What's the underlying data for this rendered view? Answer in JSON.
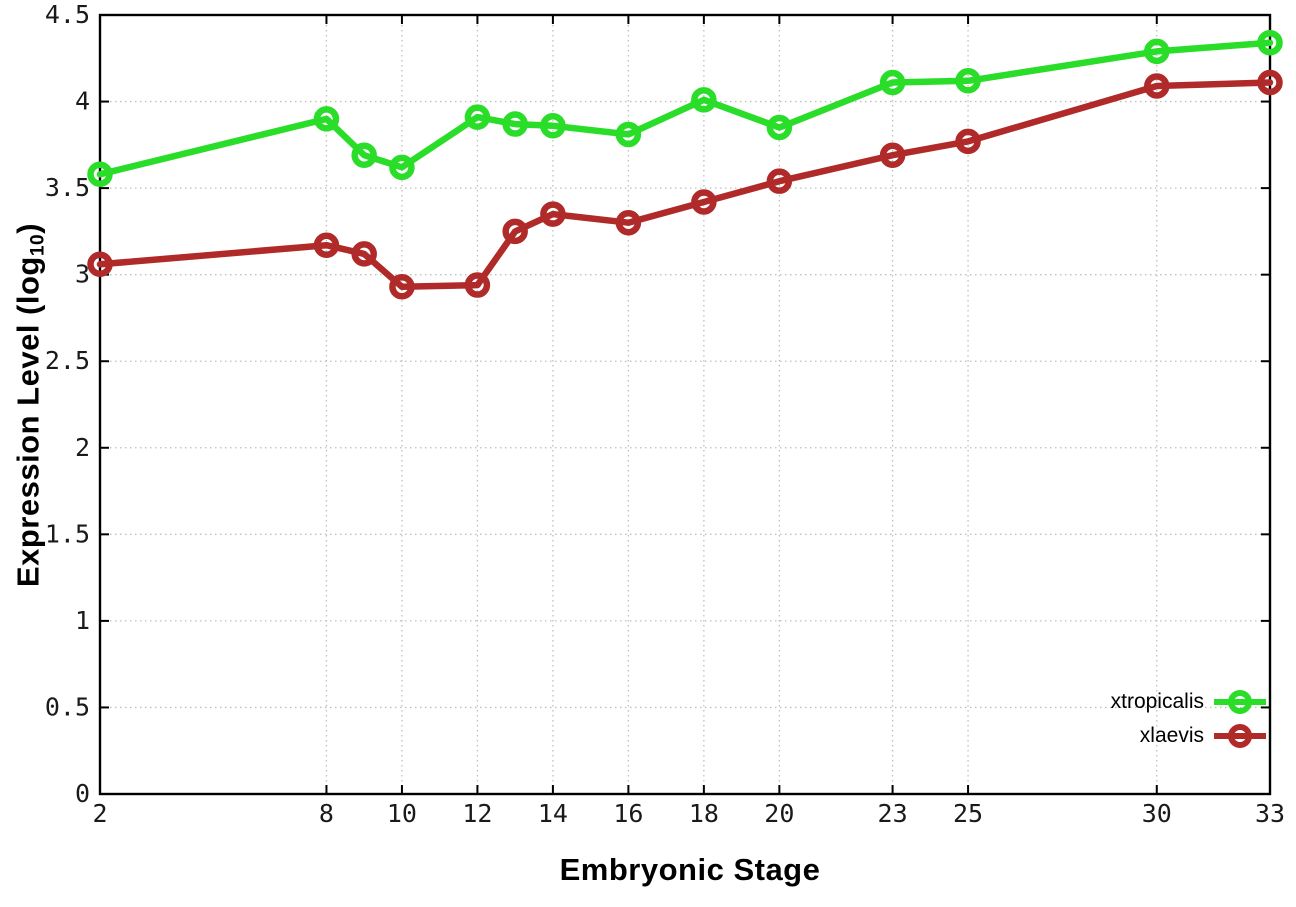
{
  "chart_data": {
    "type": "line",
    "title": "",
    "xlabel": "Embryonic Stage",
    "ylabel": "Expression Level (log10)",
    "x": [
      2,
      8,
      9,
      10,
      12,
      13,
      14,
      16,
      18,
      20,
      23,
      25,
      30,
      33
    ],
    "series": [
      {
        "name": "xtropicalis",
        "color": "#29dd29",
        "values": [
          3.58,
          3.9,
          3.69,
          3.62,
          3.91,
          3.87,
          3.86,
          3.81,
          4.01,
          3.85,
          4.11,
          4.12,
          4.29,
          4.34
        ]
      },
      {
        "name": "xlaevis",
        "color": "#b02a2a",
        "values": [
          3.06,
          3.17,
          3.12,
          2.93,
          2.94,
          3.25,
          3.35,
          3.3,
          3.42,
          3.54,
          3.69,
          3.77,
          4.09,
          4.11
        ]
      }
    ],
    "xticks": [
      2,
      8,
      10,
      12,
      14,
      16,
      18,
      20,
      23,
      25,
      30,
      33
    ],
    "yticks": [
      0,
      0.5,
      1,
      1.5,
      2,
      2.5,
      3,
      3.5,
      4,
      4.5
    ],
    "ytick_labels": [
      "0",
      "0.5",
      "1",
      "1.5",
      "2",
      "2.5",
      "3",
      "3.5",
      "4",
      "4.5"
    ],
    "xlim": [
      2,
      33
    ],
    "ylim": [
      0,
      4.5
    ],
    "grid": true,
    "legend_position": "bottom-right"
  },
  "labels": {
    "xlabel": "Embryonic Stage",
    "ylabel_main": "Expression Level (log",
    "ylabel_sub": "10",
    "ylabel_close": ")"
  },
  "colors": {
    "background": "#ffffff",
    "axis": "#000000",
    "grid": "#bfbfbf",
    "tick_text": "#1a1a1a"
  }
}
